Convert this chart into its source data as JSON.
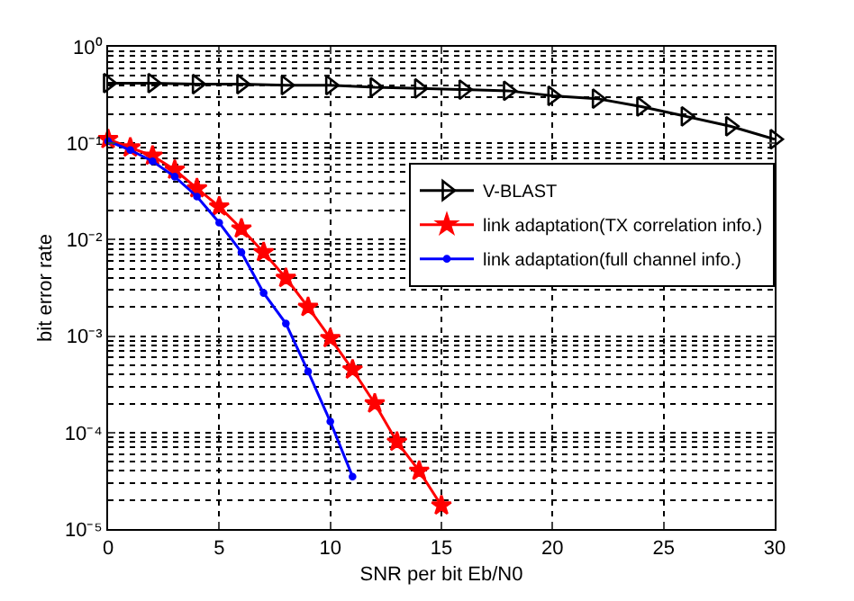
{
  "chart_data": {
    "type": "line",
    "xlabel": "SNR per bit Eb/N0",
    "ylabel": "bit error rate",
    "log": "y",
    "xlim": [
      0,
      30
    ],
    "xticks": [
      0,
      5,
      10,
      15,
      20,
      25,
      30
    ],
    "ylim": [
      1e-05,
      1
    ],
    "yticks": [
      {
        "value": 1,
        "label": "10⁰"
      },
      {
        "value": 0.1,
        "label": "10⁻¹"
      },
      {
        "value": 0.01,
        "label": "10⁻²"
      },
      {
        "value": 0.001,
        "label": "10⁻³"
      },
      {
        "value": 0.0001,
        "label": "10⁻⁴"
      },
      {
        "value": 1e-05,
        "label": "10⁻⁵"
      }
    ],
    "grid": true,
    "legend": "top right",
    "series": [
      {
        "name": "V-BLAST",
        "color": "#000000",
        "marker": "triangle",
        "x": [
          0,
          2,
          4,
          6,
          8,
          10,
          12,
          14,
          16,
          18,
          20,
          22,
          24,
          26,
          28,
          30
        ],
        "values": [
          0.42,
          0.42,
          0.41,
          0.41,
          0.4,
          0.4,
          0.38,
          0.37,
          0.36,
          0.35,
          0.31,
          0.29,
          0.24,
          0.19,
          0.15,
          0.11
        ]
      },
      {
        "name": "link adaptation(TX correlation info.)",
        "color": "#ff0000",
        "marker": "star",
        "x": [
          0,
          1,
          2,
          3,
          4,
          5,
          6,
          7,
          8,
          9,
          10,
          11,
          12,
          13,
          14,
          15
        ],
        "values": [
          0.11,
          0.09,
          0.074,
          0.053,
          0.034,
          0.022,
          0.013,
          0.0074,
          0.004,
          0.002,
          0.00095,
          0.00045,
          0.0002,
          8e-05,
          4e-05,
          1.75e-05
        ]
      },
      {
        "name": "link adaptation(full channel info.)",
        "color": "#0000ff",
        "marker": "circle",
        "x": [
          0,
          1,
          2,
          3,
          4,
          5,
          6,
          7,
          8,
          9,
          10,
          11
        ],
        "values": [
          0.105,
          0.085,
          0.065,
          0.045,
          0.028,
          0.015,
          0.0074,
          0.0028,
          0.00135,
          0.00043,
          0.00013,
          3.5e-05
        ]
      }
    ]
  }
}
